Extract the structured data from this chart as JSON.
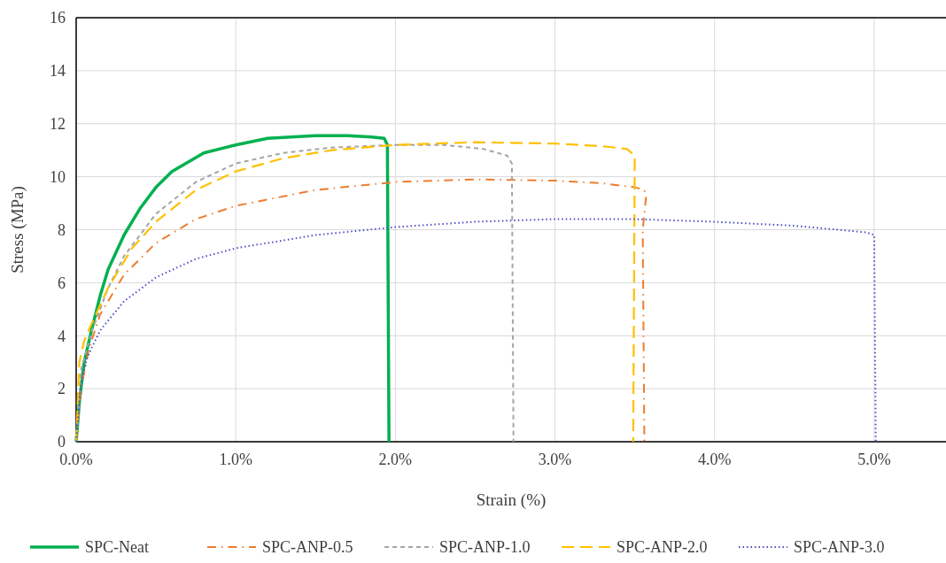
{
  "chart_data": {
    "type": "line",
    "xlabel": "Strain (%)",
    "ylabel": "Stress (MPa)",
    "xlim": [
      0,
      5.45
    ],
    "xticks": [
      {
        "value": 0,
        "label": "0.0%"
      },
      {
        "value": 1,
        "label": "1.0%"
      },
      {
        "value": 2,
        "label": "2.0%"
      },
      {
        "value": 3,
        "label": "3.0%"
      },
      {
        "value": 4,
        "label": "4.0%"
      },
      {
        "value": 5,
        "label": "5.0%"
      }
    ],
    "ylim": [
      0,
      16
    ],
    "yticks": [
      0,
      2,
      4,
      6,
      8,
      10,
      12,
      14,
      16
    ],
    "grid": true,
    "legend": "bottom",
    "marker": "none",
    "series": [
      {
        "name": "SPC-Neat",
        "color": "#00b050",
        "line_style": "solid",
        "x": [
          0,
          0.02,
          0.05,
          0.1,
          0.15,
          0.2,
          0.3,
          0.4,
          0.5,
          0.6,
          0.8,
          1.0,
          1.2,
          1.5,
          1.7,
          1.85,
          1.93,
          1.95,
          1.96
        ],
        "values": [
          0,
          1.5,
          3,
          4.3,
          5.5,
          6.5,
          7.8,
          8.8,
          9.6,
          10.2,
          10.9,
          11.2,
          11.45,
          11.55,
          11.55,
          11.5,
          11.45,
          11.2,
          0
        ]
      },
      {
        "name": "SPC-ANP-0.5",
        "color": "#ed7d31",
        "line_style": "dashdot",
        "x": [
          0,
          0.03,
          0.08,
          0.15,
          0.3,
          0.5,
          0.75,
          1.0,
          1.5,
          2.0,
          2.5,
          3.0,
          3.3,
          3.5,
          3.56,
          3.57,
          3.55,
          3.56
        ],
        "values": [
          0,
          2,
          3.5,
          4.8,
          6.3,
          7.5,
          8.4,
          8.9,
          9.5,
          9.8,
          9.9,
          9.85,
          9.75,
          9.6,
          9.5,
          9.2,
          8,
          0
        ]
      },
      {
        "name": "SPC-ANP-1.0",
        "color": "#a5a5a5",
        "line_style": "dashed",
        "x": [
          0,
          0.03,
          0.1,
          0.2,
          0.3,
          0.5,
          0.75,
          1.0,
          1.3,
          1.6,
          2.0,
          2.3,
          2.55,
          2.7,
          2.73,
          2.74
        ],
        "values": [
          0,
          2.7,
          4.2,
          5.8,
          7,
          8.6,
          9.8,
          10.5,
          10.9,
          11.1,
          11.2,
          11.2,
          11.05,
          10.8,
          10.5,
          0
        ]
      },
      {
        "name": "SPC-ANP-2.0",
        "color": "#ffc000",
        "line_style": "longdash",
        "x": [
          0,
          0.02,
          0.05,
          0.1,
          0.2,
          0.35,
          0.5,
          0.75,
          1.0,
          1.3,
          1.6,
          2.0,
          2.5,
          3.0,
          3.3,
          3.45,
          3.5,
          3.49
        ],
        "values": [
          0,
          3,
          3.8,
          4.5,
          5.8,
          7.3,
          8.3,
          9.5,
          10.2,
          10.7,
          11,
          11.2,
          11.3,
          11.25,
          11.15,
          11.05,
          10.8,
          0
        ]
      },
      {
        "name": "SPC-ANP-3.0",
        "color": "#4f4fc8",
        "line_style": "dotted",
        "x": [
          0,
          0.03,
          0.07,
          0.15,
          0.3,
          0.5,
          0.75,
          1.0,
          1.5,
          2.0,
          2.5,
          3.0,
          3.5,
          4.0,
          4.5,
          4.95,
          5.0,
          5.01
        ],
        "values": [
          0,
          2.2,
          3.2,
          4.2,
          5.3,
          6.2,
          6.9,
          7.3,
          7.8,
          8.1,
          8.3,
          8.4,
          8.4,
          8.3,
          8.15,
          7.9,
          7.8,
          0
        ]
      }
    ]
  }
}
